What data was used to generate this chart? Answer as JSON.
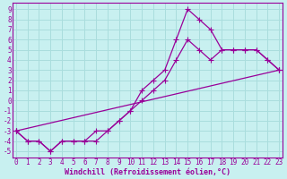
{
  "xlabel": "Windchill (Refroidissement éolien,°C)",
  "bg_color": "#c8f0f0",
  "line_color": "#990099",
  "grid_color": "#aadddd",
  "xticks": [
    0,
    1,
    2,
    3,
    4,
    5,
    6,
    7,
    8,
    9,
    10,
    11,
    12,
    13,
    14,
    15,
    16,
    17,
    18,
    19,
    20,
    21,
    22,
    23
  ],
  "yticks": [
    -5,
    -4,
    -3,
    -2,
    -1,
    0,
    1,
    2,
    3,
    4,
    5,
    6,
    7,
    8,
    9
  ],
  "xlim": [
    -0.3,
    23.3
  ],
  "ylim": [
    -5.6,
    9.6
  ],
  "line1_x": [
    0,
    1,
    2,
    3,
    4,
    5,
    6,
    7,
    8,
    9,
    10,
    11,
    12,
    13,
    14,
    15,
    16,
    17,
    18,
    19,
    20,
    21,
    22,
    23
  ],
  "line1_y": [
    -3,
    -4,
    -4,
    -5,
    -4,
    -4,
    -4,
    -4,
    -3,
    -2,
    -1,
    0,
    1,
    2,
    4,
    6,
    5,
    4,
    5,
    5,
    5,
    5,
    4,
    3
  ],
  "line2_x": [
    0,
    1,
    2,
    3,
    4,
    5,
    6,
    7,
    8,
    9,
    10,
    11,
    12,
    13,
    14,
    15,
    16,
    17,
    18,
    19,
    20,
    21,
    22,
    23
  ],
  "line2_y": [
    -3,
    -4,
    -4,
    -5,
    -4,
    -4,
    -4,
    -3,
    -3,
    -2,
    -1,
    1,
    2,
    3,
    6,
    9,
    8,
    7,
    5,
    5,
    5,
    5,
    4,
    3
  ],
  "line3_x": [
    0,
    23
  ],
  "line3_y": [
    -3,
    3
  ],
  "tick_fontsize": 5.5,
  "xlabel_fontsize": 6,
  "marker_size": 2.5,
  "line_width": 0.9
}
